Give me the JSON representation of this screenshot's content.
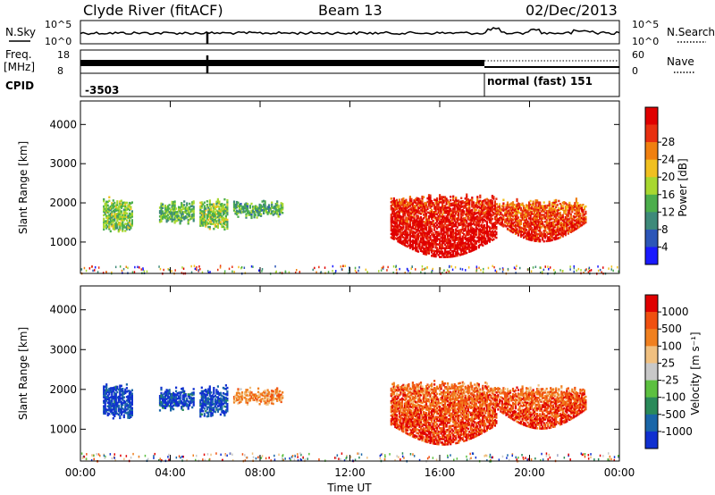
{
  "header": {
    "station": "Clyde River (fitACF)",
    "beam": "Beam 13",
    "date": "02/Dec/2013"
  },
  "top_panels": {
    "nsky_label": "N.Sky",
    "nsky_ticks": [
      "10^5",
      "10^0"
    ],
    "nsearch_label": "N.Search",
    "freq_label_1": "Freq.",
    "freq_label_2": "[MHz]",
    "freq_ticks": [
      "18",
      "8"
    ],
    "nave_label": "Nave",
    "nave_ticks": [
      "60",
      "0"
    ],
    "cpid_label": "CPID",
    "cpid_left": "-3503",
    "cpid_right": "normal (fast) 151"
  },
  "chart_data": [
    {
      "type": "heatmap",
      "ylabel": "Slant Range [km]",
      "yticks": [
        "1000",
        "2000",
        "3000",
        "4000"
      ],
      "ylim": [
        200,
        4600
      ],
      "xlim_hours": [
        0,
        24
      ],
      "xticks": [
        "00:00",
        "04:00",
        "08:00",
        "12:00",
        "16:00",
        "20:00",
        "00:00"
      ],
      "colorbar": {
        "label": "Power [dB]",
        "ticks": [
          "4",
          "8",
          "12",
          "16",
          "20",
          "24",
          "28"
        ],
        "colors": [
          "#1a1aff",
          "#2c56b8",
          "#3e8a7a",
          "#4cae4c",
          "#a8d830",
          "#f0c020",
          "#f08010",
          "#e83010",
          "#e00000"
        ]
      },
      "echo_regions": [
        {
          "t_start": 1.0,
          "t_end": 2.3,
          "r_start": 1250,
          "r_end": 2150,
          "level": 0.45
        },
        {
          "t_start": 3.5,
          "t_end": 5.0,
          "r_start": 1450,
          "r_end": 2050,
          "level": 0.4
        },
        {
          "t_start": 5.3,
          "t_end": 6.5,
          "r_start": 1300,
          "r_end": 2100,
          "level": 0.45
        },
        {
          "t_start": 6.8,
          "t_end": 9.0,
          "r_start": 1600,
          "r_end": 2050,
          "level": 0.35
        },
        {
          "t_start": 13.8,
          "t_end": 18.5,
          "r_start": 600,
          "r_end": 2200,
          "level": 0.85
        },
        {
          "t_start": 18.5,
          "t_end": 22.5,
          "r_start": 1000,
          "r_end": 2100,
          "level": 0.75
        }
      ]
    },
    {
      "type": "heatmap",
      "ylabel": "Slant Range [km]",
      "yticks": [
        "1000",
        "2000",
        "3000",
        "4000"
      ],
      "ylim": [
        200,
        4600
      ],
      "xlim_hours": [
        0,
        24
      ],
      "xticks": [
        "00:00",
        "04:00",
        "08:00",
        "12:00",
        "16:00",
        "20:00",
        "00:00"
      ],
      "xlabel": "Time UT",
      "colorbar": {
        "label": "Velocity [m s⁻¹]",
        "ticks": [
          "1000",
          "500",
          "100",
          "25",
          "-25",
          "-100",
          "-500",
          "-1000"
        ],
        "colors": [
          "#1030d0",
          "#1a66a8",
          "#2a8a5a",
          "#5cc040",
          "#c8c8c8",
          "#f0c080",
          "#f08020",
          "#f05010",
          "#e00000"
        ]
      },
      "echo_regions": [
        {
          "t_start": 1.0,
          "t_end": 2.3,
          "r_start": 1250,
          "r_end": 2150,
          "level": 0.08
        },
        {
          "t_start": 3.5,
          "t_end": 5.0,
          "r_start": 1450,
          "r_end": 2050,
          "level": 0.1
        },
        {
          "t_start": 5.3,
          "t_end": 6.5,
          "r_start": 1300,
          "r_end": 2100,
          "level": 0.1
        },
        {
          "t_start": 6.8,
          "t_end": 9.0,
          "r_start": 1600,
          "r_end": 2050,
          "level": 0.7
        },
        {
          "t_start": 13.8,
          "t_end": 18.5,
          "r_start": 600,
          "r_end": 2200,
          "level": 0.75
        },
        {
          "t_start": 18.5,
          "t_end": 22.5,
          "r_start": 1000,
          "r_end": 2100,
          "level": 0.75
        }
      ]
    }
  ]
}
